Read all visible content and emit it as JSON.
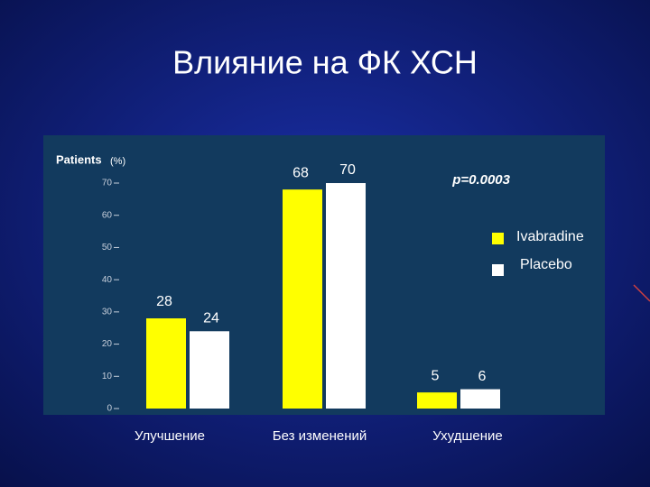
{
  "chart_data": {
    "type": "bar",
    "title": "Влияние на ФК ХСН",
    "y_label": "Patients",
    "y_unit": "(%)",
    "annotation": "p=0.0003",
    "categories": [
      "Улучшение",
      "Без изменений",
      "Ухудшение"
    ],
    "series": [
      {
        "name": "Ivabradine",
        "color": "#ffff00",
        "values": [
          28,
          68,
          5
        ]
      },
      {
        "name": "Placebo",
        "color": "#ffffff",
        "values": [
          24,
          70,
          6
        ]
      }
    ],
    "ylim": [
      0,
      70
    ],
    "yticks": [
      0,
      10,
      20,
      30,
      40,
      50,
      60,
      70
    ]
  }
}
